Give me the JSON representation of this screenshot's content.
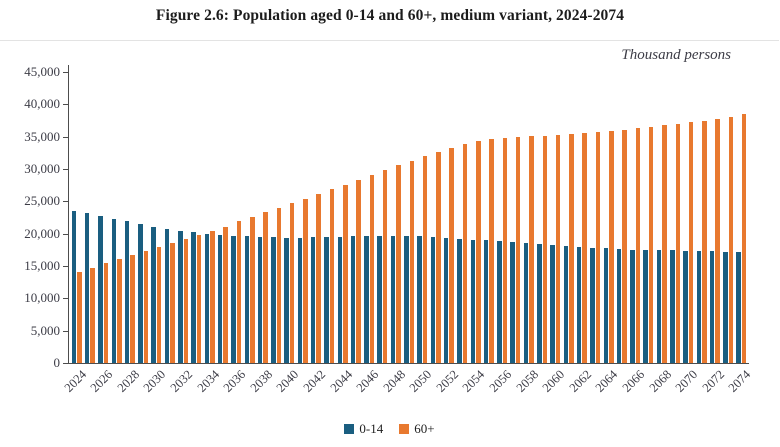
{
  "figure": {
    "title": "Figure 2.6: Population aged 0-14 and 60+, medium variant, 2024-2074",
    "units_note": "Thousand persons"
  },
  "colors": {
    "series_0_14": "#1A5E80",
    "series_60_plus": "#E8792F",
    "axis": "#4d4d4d",
    "axis_text": "#3c3c46",
    "title_text": "#1c1c1c"
  },
  "chart_data": {
    "type": "bar",
    "title": "Figure 2.6: Population aged 0-14 and 60+, medium variant, 2024-2074",
    "unit_note": "Thousand persons",
    "xlabel": "",
    "ylabel": "",
    "ylim": [
      0,
      45000
    ],
    "y_tick_step": 5000,
    "y_tick_labels": [
      "0",
      "5,000",
      "10,000",
      "15,000",
      "20,000",
      "25,000",
      "30,000",
      "35,000",
      "40,000",
      "45,000"
    ],
    "grid": false,
    "legend_position": "bottom",
    "x": [
      2024,
      2025,
      2026,
      2027,
      2028,
      2029,
      2030,
      2031,
      2032,
      2033,
      2034,
      2035,
      2036,
      2037,
      2038,
      2039,
      2040,
      2041,
      2042,
      2043,
      2044,
      2045,
      2046,
      2047,
      2048,
      2049,
      2050,
      2051,
      2052,
      2053,
      2054,
      2055,
      2056,
      2057,
      2058,
      2059,
      2060,
      2061,
      2062,
      2063,
      2064,
      2065,
      2066,
      2067,
      2068,
      2069,
      2070,
      2071,
      2072,
      2073,
      2074
    ],
    "x_tick_labels": [
      "2024",
      "2026",
      "2028",
      "2030",
      "2032",
      "2034",
      "2036",
      "2038",
      "2040",
      "2042",
      "2044",
      "2046",
      "2048",
      "2050",
      "2052",
      "2054",
      "2056",
      "2058",
      "2060",
      "2062",
      "2064",
      "2066",
      "2068",
      "2070",
      "2072",
      "2074"
    ],
    "series": [
      {
        "name": "0-14",
        "color": "#1A5E80",
        "values": [
          23550,
          23150,
          22700,
          22300,
          21900,
          21500,
          21100,
          20750,
          20450,
          20200,
          20000,
          19850,
          19700,
          19600,
          19500,
          19450,
          19400,
          19400,
          19450,
          19500,
          19550,
          19600,
          19650,
          19700,
          19700,
          19650,
          19600,
          19500,
          19400,
          19250,
          19100,
          18950,
          18800,
          18650,
          18500,
          18350,
          18200,
          18100,
          17950,
          17850,
          17750,
          17650,
          17550,
          17500,
          17450,
          17400,
          17350,
          17300,
          17250,
          17200,
          17150
        ]
      },
      {
        "name": "60+",
        "color": "#E8792F",
        "values": [
          14100,
          14750,
          15400,
          16050,
          16700,
          17350,
          18000,
          18600,
          19200,
          19800,
          20400,
          21100,
          21900,
          22600,
          23300,
          24000,
          24700,
          25400,
          26200,
          26900,
          27600,
          28300,
          29000,
          29800,
          30600,
          31300,
          32000,
          32700,
          33300,
          33800,
          34300,
          34600,
          34800,
          34950,
          35050,
          35150,
          35250,
          35400,
          35550,
          35700,
          35900,
          36100,
          36300,
          36500,
          36750,
          37000,
          37250,
          37500,
          37800,
          38100,
          38500
        ]
      }
    ]
  }
}
